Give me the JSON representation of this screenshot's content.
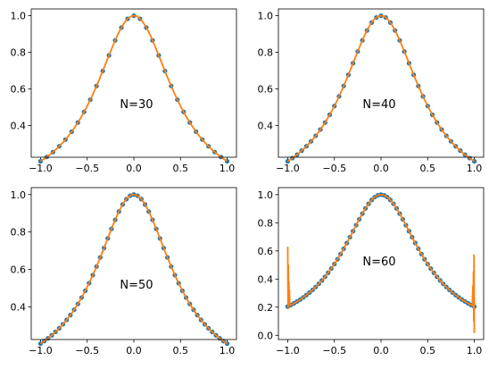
{
  "figure": {
    "background": "#ffffff"
  },
  "colors": {
    "points": "#1f77b4",
    "line": "#ff7f0e",
    "axes": "#000000"
  },
  "chart_data": [
    {
      "type": "scatter",
      "annotation": "N=30",
      "n_points": 31,
      "xlim": [
        -1.1,
        1.1
      ],
      "ylim": [
        0.226,
        1.037
      ],
      "xticks": [
        -1.0,
        -0.5,
        0.0,
        0.5,
        1.0
      ],
      "xtick_labels": [
        "−1.0",
        "−0.5",
        "0.0",
        "0.5",
        "1.0"
      ],
      "yticks": [
        0.4,
        0.6,
        0.8,
        1.0
      ],
      "ytick_labels": [
        "0.4",
        "0.6",
        "0.8",
        "1.0"
      ],
      "series": [
        {
          "kind": "points",
          "color": "#1f77b4",
          "function": "1/(1+3.9*x^2)"
        },
        {
          "kind": "line",
          "color": "#ff7f0e",
          "function": "1/(1+3.9*x^2)"
        }
      ]
    },
    {
      "type": "scatter",
      "annotation": "N=40",
      "n_points": 41,
      "xlim": [
        -1.1,
        1.1
      ],
      "ylim": [
        0.226,
        1.037
      ],
      "xticks": [
        -1.0,
        -0.5,
        0.0,
        0.5,
        1.0
      ],
      "xtick_labels": [
        "−1.0",
        "−0.5",
        "0.0",
        "0.5",
        "1.0"
      ],
      "yticks": [
        0.4,
        0.6,
        0.8,
        1.0
      ],
      "ytick_labels": [
        "0.4",
        "0.6",
        "0.8",
        "1.0"
      ],
      "series": [
        {
          "kind": "points",
          "color": "#1f77b4",
          "function": "1/(1+3.9*x^2)"
        },
        {
          "kind": "line",
          "color": "#ff7f0e",
          "function": "1/(1+3.9*x^2)"
        }
      ]
    },
    {
      "type": "scatter",
      "annotation": "N=50",
      "n_points": 51,
      "xlim": [
        -1.1,
        1.1
      ],
      "ylim": [
        0.226,
        1.037
      ],
      "xticks": [
        -1.0,
        -0.5,
        0.0,
        0.5,
        1.0
      ],
      "xtick_labels": [
        "−1.0",
        "−0.5",
        "0.0",
        "0.5",
        "1.0"
      ],
      "yticks": [
        0.4,
        0.6,
        0.8,
        1.0
      ],
      "ytick_labels": [
        "0.4",
        "0.6",
        "0.8",
        "1.0"
      ],
      "series": [
        {
          "kind": "points",
          "color": "#1f77b4",
          "function": "1/(1+3.9*x^2)"
        },
        {
          "kind": "line",
          "color": "#ff7f0e",
          "function": "1/(1+3.9*x^2)"
        }
      ]
    },
    {
      "type": "scatter",
      "annotation": "N=60",
      "n_points": 61,
      "xlim": [
        -1.1,
        1.1
      ],
      "ylim": [
        -0.03,
        1.05
      ],
      "xticks": [
        -1.0,
        -0.5,
        0.0,
        0.5,
        1.0
      ],
      "xtick_labels": [
        "−1.0",
        "−0.5",
        "0.0",
        "0.5",
        "1.0"
      ],
      "yticks": [
        0.0,
        0.2,
        0.4,
        0.6,
        0.8,
        1.0
      ],
      "ytick_labels": [
        "0.0",
        "0.2",
        "0.4",
        "0.6",
        "0.8",
        "1.0"
      ],
      "series": [
        {
          "kind": "points",
          "color": "#1f77b4",
          "function": "1/(1+3.9*x^2)"
        },
        {
          "kind": "line",
          "color": "#ff7f0e",
          "function": "1/(1+3.9*x^2)",
          "edge_oscillation": {
            "left_max": 0.63,
            "left_min": 0.19,
            "right_max": 0.57,
            "right_min": 0.02
          }
        }
      ]
    }
  ]
}
